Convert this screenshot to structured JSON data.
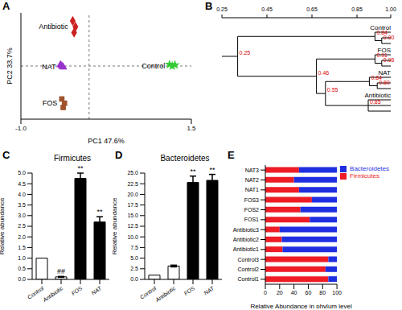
{
  "chart_data": [
    {
      "type": "scatter",
      "title": "A",
      "x_label": "PC1 47.6%",
      "y_label": "PC2 33.7%",
      "xlim": [
        -1,
        1.5
      ],
      "xticks": [
        {
          "value": -1,
          "label": "-1.0"
        },
        1.5
      ],
      "ylim": [
        -1,
        1
      ],
      "yticks": [],
      "tick_labels": "x",
      "grid": false,
      "series": [
        {
          "name": "Antibiotic",
          "color": "#cc2222",
          "marker": "diamond",
          "x": [
            -0.24,
            -0.2,
            -0.22
          ],
          "values": [
            0.85,
            0.74,
            0.63
          ]
        },
        {
          "name": "NAT",
          "color": "#9933cc",
          "marker": "triangle",
          "x": [
            -0.42,
            -0.38,
            -0.4
          ],
          "values": [
            0.02,
            -0.02,
            0.0
          ]
        },
        {
          "name": "FOS",
          "color": "#a0522d",
          "marker": "square",
          "x": [
            -0.4,
            -0.36,
            -0.38
          ],
          "values": [
            -0.62,
            -0.7,
            -0.78
          ]
        },
        {
          "name": "Control",
          "color": "#33cc33",
          "marker": "star",
          "x": [
            1.18,
            1.22,
            1.26
          ],
          "values": [
            0.03,
            0.0,
            0.02
          ]
        }
      ]
    },
    {
      "type": "dendrogram",
      "title": "B",
      "xlim": [
        0.25,
        1
      ],
      "xticks": [
        0.25,
        0.45,
        0.65,
        0.85,
        {
          "value": 1,
          "label": "1.00"
        }
      ],
      "tree": {
        "label": 0.25,
        "height": 0.32,
        "children": [
          {
            "name": "Control",
            "leaves": 3,
            "nodes": [
              {
                "label": 0.84,
                "height": 0.93
              },
              {
                "label": 0.9,
                "height": 0.96
              }
            ]
          },
          {
            "label": 0.46,
            "height": 0.67,
            "children": [
              {
                "name": "FOS",
                "leaves": 3,
                "nodes": [
                  {
                    "label": 0.91,
                    "height": 0.93
                  },
                  {
                    "label": 0.96,
                    "height": 0.96
                  }
                ]
              },
              {
                "label": 0.55,
                "height": 0.71,
                "children": [
                  {
                    "name": "NAT",
                    "leaves": 3,
                    "nodes": [
                      {
                        "label": 0.84,
                        "height": 0.905
                      },
                      {
                        "label": 0.8,
                        "height": 0.94
                      }
                    ]
                  },
                  {
                    "name": "Antibiotic",
                    "leaves": 3,
                    "nodes": [
                      {
                        "label": 0.85,
                        "height": 0.9
                      }
                    ]
                  }
                ]
              }
            ]
          }
        ]
      }
    },
    {
      "type": "bar",
      "title": "C",
      "subtitle": "Firmicutes",
      "y_label": "Relative abundance",
      "categories": [
        "Control",
        "Antibiotic",
        "FOS",
        "NAT"
      ],
      "values": [
        1.0,
        0.12,
        4.75,
        2.7
      ],
      "errors": [
        0,
        0.02,
        0.25,
        0.25
      ],
      "colors": [
        "#ffffff",
        "#ffffff",
        "#000000",
        "#000000"
      ],
      "annotations": [
        null,
        "##",
        "**",
        "**"
      ],
      "ylim": [
        0,
        5
      ],
      "yticks": [
        {
          "value": 0,
          "label": "0.0"
        },
        0.5,
        {
          "value": 1,
          "label": "1.0"
        },
        1.5,
        {
          "value": 2,
          "label": "2.0"
        },
        2.5,
        {
          "value": 3,
          "label": "3.0"
        },
        3.5,
        {
          "value": 4,
          "label": "4.0"
        },
        4.5,
        {
          "value": 5,
          "label": "5.0"
        }
      ],
      "grid": false
    },
    {
      "type": "bar",
      "title": "D",
      "subtitle": "Bacteroidetes",
      "y_label": "Relative abundance",
      "categories": [
        "Control",
        "Antibiotic",
        "FOS",
        "NAT"
      ],
      "values": [
        1.0,
        3.15,
        22.8,
        23.3
      ],
      "errors": [
        0,
        0.2,
        1.5,
        1.4
      ],
      "colors": [
        "#ffffff",
        "#ffffff",
        "#000000",
        "#000000"
      ],
      "annotations": [
        null,
        null,
        "**",
        "**"
      ],
      "ylim": [
        0,
        25
      ],
      "yticks": [
        {
          "value": 0,
          "label": "0.0"
        },
        2.5,
        {
          "value": 5,
          "label": "5.0"
        },
        7.5,
        {
          "value": 10,
          "label": "10.0"
        },
        12.5,
        {
          "value": 15,
          "label": "15.0"
        },
        17.5,
        {
          "value": 20,
          "label": "20.0"
        },
        22.5,
        {
          "value": 25,
          "label": "25.0"
        }
      ],
      "grid": false
    },
    {
      "type": "bar",
      "title": "E",
      "orientation": "horizontal",
      "stacked": true,
      "legend": "right",
      "grid": false,
      "x_label": "Relative Abundance in phylum level",
      "categories": [
        "NAT3",
        "NAT2",
        "NAT1",
        "FOS3",
        "FOS2",
        "FOS1",
        "Antibiotic3",
        "Antibiotic2",
        "Antibiotic1",
        "Control3",
        "Control2",
        "Control1"
      ],
      "series": [
        {
          "name": "Firmicutes",
          "color": "#ee1c25",
          "values": [
            47,
            40,
            47,
            65,
            49,
            62,
            20,
            23,
            24,
            88,
            84,
            88
          ]
        },
        {
          "name": "Bacteroidetes",
          "color": "#1f2fe0",
          "values": [
            53,
            60,
            53,
            35,
            51,
            38,
            80,
            77,
            76,
            12,
            16,
            12
          ]
        }
      ],
      "xlim": [
        0,
        100
      ],
      "xticks": [
        0,
        20,
        40,
        60,
        80,
        100
      ]
    }
  ]
}
